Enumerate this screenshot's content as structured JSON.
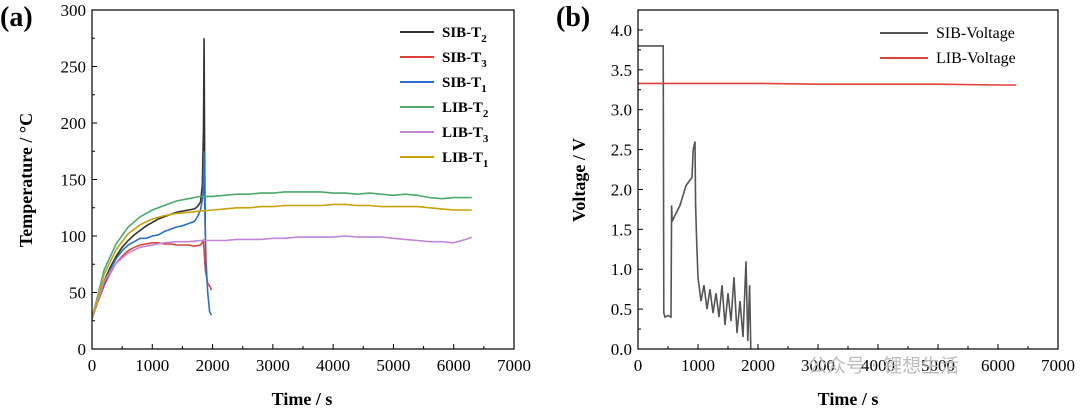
{
  "panels": {
    "a": {
      "label": "(a)"
    },
    "b": {
      "label": "(b)"
    }
  },
  "watermark": {
    "text": "公众号 · 锂想生活"
  },
  "chart_data": [
    {
      "type": "line",
      "panel": "(a)",
      "xlabel": "Time / s",
      "ylabel": "Temperature / °C",
      "xlim": [
        0,
        7000
      ],
      "ylim": [
        0,
        300
      ],
      "xticks": [
        "0",
        "1000",
        "2000",
        "3000",
        "4000",
        "5000",
        "6000",
        "7000"
      ],
      "yticks": [
        "0",
        "50",
        "100",
        "150",
        "200",
        "250",
        "300"
      ],
      "legend_position": "top-right",
      "series": [
        {
          "name": "SIB-T",
          "sub": "2",
          "color": "#333333",
          "points": [
            [
              0,
              27
            ],
            [
              100,
              45
            ],
            [
              200,
              60
            ],
            [
              300,
              72
            ],
            [
              400,
              82
            ],
            [
              500,
              90
            ],
            [
              600,
              96
            ],
            [
              700,
              101
            ],
            [
              800,
              105
            ],
            [
              900,
              109
            ],
            [
              1000,
              112
            ],
            [
              1100,
              115
            ],
            [
              1200,
              117
            ],
            [
              1300,
              119
            ],
            [
              1400,
              121
            ],
            [
              1500,
              122
            ],
            [
              1600,
              123
            ],
            [
              1700,
              124
            ],
            [
              1750,
              126
            ],
            [
              1800,
              130
            ],
            [
              1830,
              145
            ],
            [
              1850,
              195
            ],
            [
              1860,
              275
            ],
            [
              1870,
              160
            ],
            [
              1880,
              100
            ]
          ]
        },
        {
          "name": "SIB-T",
          "sub": "3",
          "color": "#e0413a",
          "points": [
            [
              0,
              27
            ],
            [
              100,
              42
            ],
            [
              200,
              56
            ],
            [
              300,
              67
            ],
            [
              400,
              76
            ],
            [
              500,
              82
            ],
            [
              600,
              87
            ],
            [
              700,
              90
            ],
            [
              800,
              92
            ],
            [
              900,
              93
            ],
            [
              1000,
              94
            ],
            [
              1100,
              94
            ],
            [
              1200,
              93
            ],
            [
              1300,
              93
            ],
            [
              1400,
              92
            ],
            [
              1500,
              92
            ],
            [
              1600,
              92
            ],
            [
              1700,
              91
            ],
            [
              1800,
              92
            ],
            [
              1850,
              96
            ],
            [
              1880,
              70
            ],
            [
              1920,
              58
            ],
            [
              1960,
              55
            ],
            [
              1980,
              52
            ]
          ]
        },
        {
          "name": "SIB-T",
          "sub": "1",
          "color": "#2a6fcf",
          "points": [
            [
              0,
              27
            ],
            [
              100,
              43
            ],
            [
              200,
              58
            ],
            [
              300,
              70
            ],
            [
              400,
              80
            ],
            [
              500,
              87
            ],
            [
              600,
              92
            ],
            [
              700,
              95
            ],
            [
              800,
              98
            ],
            [
              900,
              98
            ],
            [
              1000,
              100
            ],
            [
              1100,
              101
            ],
            [
              1200,
              104
            ],
            [
              1300,
              106
            ],
            [
              1400,
              108
            ],
            [
              1500,
              109
            ],
            [
              1600,
              111
            ],
            [
              1700,
              113
            ],
            [
              1750,
              117
            ],
            [
              1800,
              123
            ],
            [
              1840,
              135
            ],
            [
              1860,
              175
            ],
            [
              1870,
              130
            ],
            [
              1890,
              80
            ],
            [
              1920,
              50
            ],
            [
              1950,
              33
            ],
            [
              1980,
              30
            ]
          ]
        },
        {
          "name": "LIB-T",
          "sub": "2",
          "color": "#4caa6b",
          "points": [
            [
              0,
              27
            ],
            [
              200,
              70
            ],
            [
              400,
              93
            ],
            [
              600,
              108
            ],
            [
              800,
              117
            ],
            [
              1000,
              123
            ],
            [
              1200,
              127
            ],
            [
              1400,
              131
            ],
            [
              1600,
              133
            ],
            [
              1800,
              135
            ],
            [
              2000,
              135
            ],
            [
              2200,
              136
            ],
            [
              2400,
              137
            ],
            [
              2600,
              137
            ],
            [
              2800,
              138
            ],
            [
              3000,
              138
            ],
            [
              3200,
              139
            ],
            [
              3400,
              139
            ],
            [
              3600,
              139
            ],
            [
              3800,
              139
            ],
            [
              4000,
              138
            ],
            [
              4200,
              138
            ],
            [
              4400,
              137
            ],
            [
              4600,
              138
            ],
            [
              4800,
              137
            ],
            [
              5000,
              136
            ],
            [
              5200,
              137
            ],
            [
              5400,
              136
            ],
            [
              5600,
              134
            ],
            [
              5800,
              133
            ],
            [
              6000,
              134
            ],
            [
              6200,
              134
            ],
            [
              6300,
              134
            ]
          ]
        },
        {
          "name": "LIB-T",
          "sub": "3",
          "color": "#c086d8",
          "points": [
            [
              0,
              27
            ],
            [
              200,
              60
            ],
            [
              400,
              76
            ],
            [
              600,
              85
            ],
            [
              800,
              90
            ],
            [
              1000,
              92
            ],
            [
              1200,
              94
            ],
            [
              1400,
              95
            ],
            [
              1600,
              95
            ],
            [
              1800,
              96
            ],
            [
              2000,
              96
            ],
            [
              2200,
              96
            ],
            [
              2400,
              97
            ],
            [
              2600,
              97
            ],
            [
              2800,
              97
            ],
            [
              3000,
              98
            ],
            [
              3200,
              98
            ],
            [
              3400,
              99
            ],
            [
              3600,
              99
            ],
            [
              3800,
              99
            ],
            [
              4000,
              99
            ],
            [
              4200,
              100
            ],
            [
              4400,
              99
            ],
            [
              4600,
              99
            ],
            [
              4800,
              99
            ],
            [
              5000,
              98
            ],
            [
              5200,
              97
            ],
            [
              5400,
              96
            ],
            [
              5600,
              95
            ],
            [
              5800,
              95
            ],
            [
              6000,
              94
            ],
            [
              6200,
              97
            ],
            [
              6300,
              99
            ]
          ]
        },
        {
          "name": "LIB-T",
          "sub": "1",
          "color": "#c9a20a",
          "points": [
            [
              0,
              27
            ],
            [
              200,
              66
            ],
            [
              400,
              88
            ],
            [
              600,
              102
            ],
            [
              800,
              110
            ],
            [
              1000,
              115
            ],
            [
              1200,
              118
            ],
            [
              1400,
              120
            ],
            [
              1600,
              121
            ],
            [
              1800,
              122
            ],
            [
              2000,
              123
            ],
            [
              2200,
              124
            ],
            [
              2400,
              125
            ],
            [
              2600,
              125
            ],
            [
              2800,
              126
            ],
            [
              3000,
              126
            ],
            [
              3200,
              127
            ],
            [
              3400,
              127
            ],
            [
              3600,
              127
            ],
            [
              3800,
              127
            ],
            [
              4000,
              128
            ],
            [
              4200,
              128
            ],
            [
              4400,
              127
            ],
            [
              4600,
              127
            ],
            [
              4800,
              126
            ],
            [
              5000,
              126
            ],
            [
              5200,
              126
            ],
            [
              5400,
              126
            ],
            [
              5600,
              125
            ],
            [
              5800,
              124
            ],
            [
              6000,
              123
            ],
            [
              6200,
              123
            ],
            [
              6300,
              123
            ]
          ]
        }
      ]
    },
    {
      "type": "line",
      "panel": "(b)",
      "xlabel": "Time / s",
      "ylabel": "Voltage / V",
      "xlim": [
        0,
        7000
      ],
      "ylim": [
        0,
        4.25
      ],
      "xticks": [
        "0",
        "1000",
        "2000",
        "3000",
        "4000",
        "5000",
        "6000",
        "7000"
      ],
      "yticks": [
        "0.0",
        "0.5",
        "1.0",
        "1.5",
        "2.0",
        "2.5",
        "3.0",
        "3.5",
        "4.0"
      ],
      "legend_position": "top-right",
      "series": [
        {
          "name": "SIB-Voltage",
          "color": "#555555",
          "points": [
            [
              0,
              3.8
            ],
            [
              420,
              3.8
            ],
            [
              430,
              0.45
            ],
            [
              450,
              0.4
            ],
            [
              500,
              0.42
            ],
            [
              550,
              0.4
            ],
            [
              560,
              1.8
            ],
            [
              570,
              1.6
            ],
            [
              600,
              1.65
            ],
            [
              700,
              1.8
            ],
            [
              800,
              2.05
            ],
            [
              850,
              2.1
            ],
            [
              900,
              2.15
            ],
            [
              920,
              2.5
            ],
            [
              950,
              2.6
            ],
            [
              960,
              1.8
            ],
            [
              980,
              1.3
            ],
            [
              1000,
              0.9
            ],
            [
              1050,
              0.6
            ],
            [
              1100,
              0.8
            ],
            [
              1150,
              0.5
            ],
            [
              1200,
              0.75
            ],
            [
              1250,
              0.45
            ],
            [
              1300,
              0.7
            ],
            [
              1350,
              0.4
            ],
            [
              1400,
              0.8
            ],
            [
              1450,
              0.3
            ],
            [
              1500,
              0.7
            ],
            [
              1550,
              0.35
            ],
            [
              1600,
              0.9
            ],
            [
              1650,
              0.2
            ],
            [
              1700,
              0.6
            ],
            [
              1750,
              0.15
            ],
            [
              1800,
              1.1
            ],
            [
              1830,
              0.1
            ],
            [
              1860,
              0.8
            ],
            [
              1880,
              0.0
            ]
          ]
        },
        {
          "name": "LIB-Voltage",
          "color": "#e0413a",
          "points": [
            [
              0,
              3.33
            ],
            [
              1000,
              3.33
            ],
            [
              2000,
              3.33
            ],
            [
              3000,
              3.32
            ],
            [
              4000,
              3.32
            ],
            [
              5000,
              3.32
            ],
            [
              6000,
              3.31
            ],
            [
              6300,
              3.31
            ]
          ]
        }
      ]
    }
  ]
}
